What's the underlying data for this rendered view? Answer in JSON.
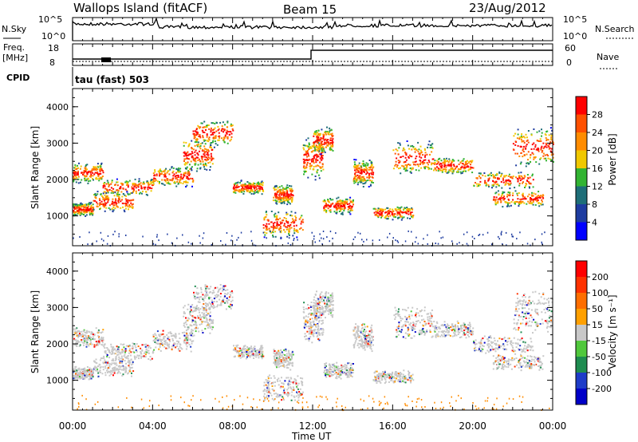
{
  "header": {
    "station": "Wallops Island (fitACF)",
    "beam": "Beam 15",
    "date": "23/Aug/2012"
  },
  "params": {
    "nsky_label": "N.Sky",
    "nsearch_label": "N.Search",
    "freq_label": "Freq.",
    "freq_unit": "[MHz]",
    "nave_label": "Nave",
    "cpid_label": "CPID",
    "cpid_value": "tau (fast) 503",
    "noise_ticks": [
      "10^5",
      "10^0"
    ],
    "freq_ticks": [
      "18",
      "8"
    ],
    "nave_ticks": [
      "60",
      "0"
    ]
  },
  "chart_data": [
    {
      "type": "heatmap",
      "panel": "power",
      "ylabel": "Slant Range [km]",
      "ylim": [
        180,
        4500
      ],
      "yticks": [
        1000,
        2000,
        3000,
        4000
      ],
      "xlim": [
        0,
        24
      ],
      "colorbar": {
        "label": "Power [dB]",
        "ticks": [
          "28",
          "24",
          "20",
          "16",
          "12",
          "8",
          "4"
        ],
        "colors": [
          "#0000ff",
          "#1e3ca0",
          "#1e6e78",
          "#32b432",
          "#f0c800",
          "#ff8c00",
          "#ff5000",
          "#ff0000"
        ]
      }
    },
    {
      "type": "heatmap",
      "panel": "velocity",
      "ylabel": "Slant Range [km]",
      "ylim": [
        180,
        4500
      ],
      "yticks": [
        1000,
        2000,
        3000,
        4000
      ],
      "xlim": [
        0,
        24
      ],
      "colorbar": {
        "label": "Velocity [m s⁻¹]",
        "ticks": [
          "200",
          "100",
          "50",
          "15",
          "-15",
          "-50",
          "-100",
          "-200"
        ],
        "colors": [
          "#0000c8",
          "#1e3cc8",
          "#1e8c50",
          "#50c83c",
          "#c8c8c8",
          "#ffa000",
          "#ff6e00",
          "#ff3200",
          "#ff0000"
        ]
      }
    }
  ],
  "xaxis": {
    "label": "Time UT",
    "ticks": [
      "00:00",
      "04:00",
      "08:00",
      "12:00",
      "16:00",
      "20:00",
      "00:00"
    ]
  }
}
